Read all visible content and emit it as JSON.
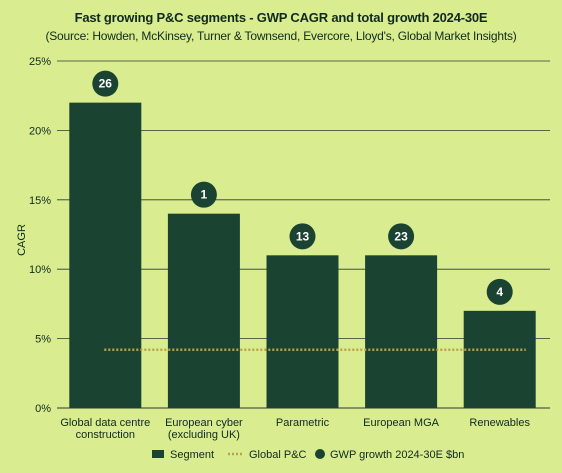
{
  "chart_data": {
    "type": "bar",
    "title": "Fast growing P&C segments - GWP CAGR and total growth 2024-30E",
    "subtitle": "(Source: Howden, McKinsey, Turner & Townsend, Evercore, Lloyd's, Global Market Insights)",
    "ylabel": "CAGR",
    "xlabel": "",
    "ylim": [
      0,
      25
    ],
    "yticks": [
      "0%",
      "5%",
      "10%",
      "15%",
      "20%",
      "25%"
    ],
    "grid": true,
    "categories": [
      "Global data centre construction",
      "European cyber (excluding UK)",
      "Parametric",
      "European MGA",
      "Renewables"
    ],
    "series": [
      {
        "name": "Segment",
        "type": "bar",
        "values": [
          22,
          14,
          11,
          11,
          7
        ]
      },
      {
        "name": "Global P&C",
        "type": "line",
        "values": [
          4.2,
          4.2,
          4.2,
          4.2,
          4.2
        ]
      },
      {
        "name": "GWP growth 2024-30E $bn",
        "type": "label",
        "values": [
          26,
          1,
          13,
          23,
          4
        ]
      }
    ],
    "legend_position": "bottom",
    "colors": {
      "background": "#d9ec8f",
      "bar": "#1b4332",
      "badge": "#1b4332",
      "badge_text": "#ffffff",
      "global_line": "#b9a346",
      "text": "#0f2a1f",
      "grid": "#2b3a30"
    }
  },
  "legend": {
    "segment": "Segment",
    "global": "Global P&C",
    "growth": "GWP growth 2024-30E $bn"
  }
}
